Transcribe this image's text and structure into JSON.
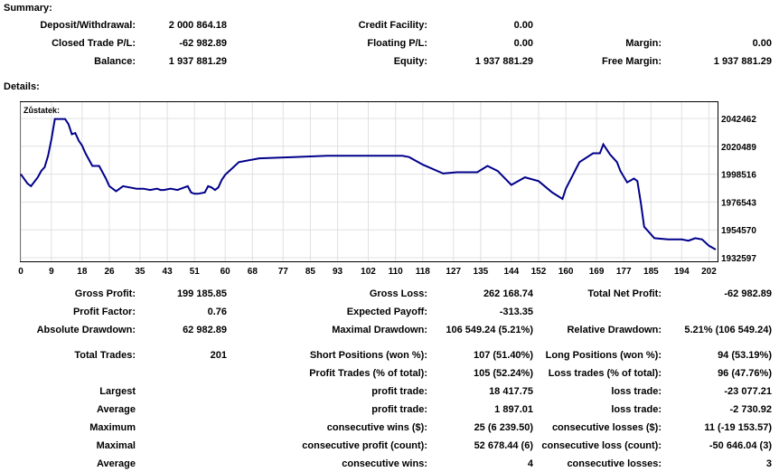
{
  "summary": {
    "title": "Summary:",
    "deposit_label": "Deposit/Withdrawal:",
    "deposit_value": "2 000 864.18",
    "credit_label": "Credit Facility:",
    "credit_value": "0.00",
    "closed_pl_label": "Closed Trade P/L:",
    "closed_pl_value": "-62 982.89",
    "floating_label": "Floating P/L:",
    "floating_value": "0.00",
    "margin_label": "Margin:",
    "margin_value": "0.00",
    "balance_label": "Balance:",
    "balance_value": "1 937 881.29",
    "equity_label": "Equity:",
    "equity_value": "1 937 881.29",
    "free_margin_label": "Free Margin:",
    "free_margin_value": "1 937 881.29"
  },
  "details": {
    "title": "Details:"
  },
  "chart_data": {
    "type": "line",
    "series_label": "Zůstatek:",
    "line_color": "#00008b",
    "grid": true,
    "x_tick_labels": [
      "0",
      "9",
      "18",
      "26",
      "35",
      "43",
      "51",
      "60",
      "68",
      "77",
      "85",
      "93",
      "102",
      "110",
      "118",
      "127",
      "135",
      "144",
      "152",
      "160",
      "169",
      "177",
      "185",
      "194",
      "202"
    ],
    "y_tick_labels": [
      "2042462",
      "2020489",
      "1998516",
      "1976543",
      "1954570",
      "1932597"
    ],
    "xlim": [
      0,
      204
    ],
    "ylim": [
      1932597,
      2042462
    ],
    "x": [
      0,
      2,
      3,
      5,
      6,
      7,
      8,
      9,
      10,
      11,
      12,
      13,
      14,
      15,
      16,
      17,
      18,
      19,
      21,
      22,
      23,
      25,
      26,
      28,
      30,
      32,
      34,
      36,
      38,
      40,
      41,
      42,
      44,
      46,
      48,
      49,
      50,
      51,
      52,
      54,
      55,
      56,
      57,
      58,
      59,
      60,
      64,
      70,
      80,
      90,
      100,
      110,
      112,
      114,
      118,
      124,
      128,
      134,
      137,
      140,
      144,
      148,
      152,
      156,
      159,
      160,
      164,
      168,
      170,
      171,
      173,
      175,
      176,
      178,
      180,
      181,
      182,
      183,
      186,
      190,
      194,
      196,
      198,
      200,
      202,
      204
    ],
    "y": [
      1998500,
      1991000,
      1989000,
      1996000,
      2001000,
      2004000,
      2013000,
      2026000,
      2042000,
      2042000,
      2042000,
      2042000,
      2038000,
      2030000,
      2031000,
      2025000,
      2021000,
      2015000,
      2005000,
      2005000,
      2005000,
      1995000,
      1989000,
      1985000,
      1989000,
      1988000,
      1987000,
      1987000,
      1986000,
      1987000,
      1986000,
      1986000,
      1987000,
      1986000,
      1988000,
      1989000,
      1984000,
      1983000,
      1983000,
      1984000,
      1989000,
      1988000,
      1986000,
      1988000,
      1994000,
      1998000,
      2008000,
      2011000,
      2012000,
      2013000,
      2013000,
      2013000,
      2013000,
      2012000,
      2006000,
      1999000,
      2000000,
      2000000,
      2005000,
      2001000,
      1990000,
      1996000,
      1993000,
      1984000,
      1979000,
      1987000,
      2008000,
      2015000,
      2015000,
      2022000,
      2014000,
      2008000,
      2001000,
      1992000,
      1995000,
      1993000,
      1976000,
      1957000,
      1948000,
      1947000,
      1947000,
      1946000,
      1948000,
      1947000,
      1942000,
      1939000
    ]
  },
  "stats": {
    "gross_profit_label": "Gross Profit:",
    "gross_profit_value": "199 185.85",
    "gross_loss_label": "Gross Loss:",
    "gross_loss_value": "262 168.74",
    "total_net_label": "Total Net Profit:",
    "total_net_value": "-62 982.89",
    "profit_factor_label": "Profit Factor:",
    "profit_factor_value": "0.76",
    "expected_payoff_label": "Expected Payoff:",
    "expected_payoff_value": "-313.35",
    "absolute_dd_label": "Absolute Drawdown:",
    "absolute_dd_value": "62 982.89",
    "maximal_dd_label": "Maximal Drawdown:",
    "maximal_dd_value": "106 549.24 (5.21%)",
    "relative_dd_label": "Relative Drawdown:",
    "relative_dd_value": "5.21% (106 549.24)",
    "total_trades_label": "Total Trades:",
    "total_trades_value": "201",
    "short_label": "Short Positions (won %):",
    "short_value": "107 (51.40%)",
    "long_label": "Long Positions (won %):",
    "long_value": "94 (53.19%)",
    "profit_trades_label": "Profit Trades (% of total):",
    "profit_trades_value": "105 (52.24%)",
    "loss_trades_label": "Loss trades (% of total):",
    "loss_trades_value": "96 (47.76%)",
    "largest_label": "Largest",
    "largest_profit_label": "profit trade:",
    "largest_profit_value": "18 417.75",
    "largest_loss_label": "loss trade:",
    "largest_loss_value": "-23 077.21",
    "average_label": "Average",
    "average_profit_label": "profit trade:",
    "average_profit_value": "1 897.01",
    "average_loss_label": "loss trade:",
    "average_loss_value": "-2 730.92",
    "maximum_label": "Maximum",
    "max_wins_label": "consecutive wins ($):",
    "max_wins_value": "25 (6 239.50)",
    "max_losses_label": "consecutive losses ($):",
    "max_losses_value": "11 (-19 153.57)",
    "maximal_label": "Maximal",
    "maximal_profit_label": "consecutive profit (count):",
    "maximal_profit_value": "52 678.44 (6)",
    "maximal_loss_label": "consecutive loss (count):",
    "maximal_loss_value": "-50 646.04 (3)",
    "average2_label": "Average",
    "avg_cons_wins_label": "consecutive wins:",
    "avg_cons_wins_value": "4",
    "avg_cons_losses_label": "consecutive losses:",
    "avg_cons_losses_value": "3"
  }
}
